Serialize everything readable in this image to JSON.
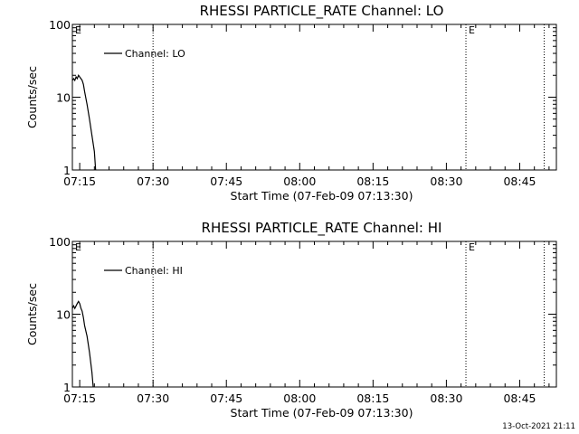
{
  "chart_data": [
    {
      "type": "line",
      "title": "RHESSI PARTICLE_RATE Channel: LO",
      "xlabel": "Start Time (07-Feb-09 07:13:30)",
      "ylabel": "Counts/sec",
      "yscale": "log",
      "ylim": [
        1,
        100
      ],
      "xlim": [
        "07:13:30",
        "08:52:30"
      ],
      "y_ticks": [
        "1",
        "10",
        "100"
      ],
      "x_ticks": [
        "07:15",
        "07:30",
        "07:45",
        "08:00",
        "08:15",
        "08:30",
        "08:45"
      ],
      "legend_placement": "top-left",
      "grid": false,
      "series": [
        {
          "name": "Channel: LO",
          "x": [
            "07:13:30",
            "07:13:45",
            "07:14:00",
            "07:14:15",
            "07:14:30",
            "07:14:45",
            "07:15:00",
            "07:15:15",
            "07:15:30",
            "07:15:45",
            "07:16:00",
            "07:16:30",
            "07:17:00",
            "07:17:30",
            "07:18:00",
            "07:18:15"
          ],
          "values": [
            17,
            18,
            17,
            19,
            18,
            20,
            19,
            18,
            17,
            15,
            12,
            8,
            5,
            3,
            1.8,
            1.0
          ]
        }
      ],
      "vlines": [
        "07:30",
        "08:34",
        "08:50"
      ],
      "markers": [
        {
          "label": "E",
          "at": "07:13:30"
        },
        {
          "label": "E",
          "at": "08:34"
        }
      ]
    },
    {
      "type": "line",
      "title": "RHESSI PARTICLE_RATE Channel: HI",
      "xlabel": "Start Time (07-Feb-09 07:13:30)",
      "ylabel": "Counts/sec",
      "yscale": "log",
      "ylim": [
        1,
        100
      ],
      "xlim": [
        "07:13:30",
        "08:52:30"
      ],
      "y_ticks": [
        "1",
        "10",
        "100"
      ],
      "x_ticks": [
        "07:15",
        "07:30",
        "07:45",
        "08:00",
        "08:15",
        "08:30",
        "08:45"
      ],
      "legend_placement": "top-left",
      "grid": false,
      "series": [
        {
          "name": "Channel: HI",
          "x": [
            "07:13:30",
            "07:13:45",
            "07:14:00",
            "07:14:15",
            "07:14:30",
            "07:14:45",
            "07:15:00",
            "07:15:15",
            "07:15:30",
            "07:15:45",
            "07:16:00",
            "07:16:30",
            "07:17:00",
            "07:17:30",
            "07:17:45"
          ],
          "values": [
            12,
            13,
            12,
            13,
            14,
            15,
            14,
            12,
            11,
            9,
            7,
            5,
            3,
            1.6,
            1.0
          ]
        }
      ],
      "vlines": [
        "07:30",
        "08:34",
        "08:50"
      ],
      "markers": [
        {
          "label": "E",
          "at": "07:13:30"
        },
        {
          "label": "E",
          "at": "08:34"
        }
      ]
    }
  ],
  "footer": {
    "timestamp": "13-Oct-2021 21:11"
  }
}
